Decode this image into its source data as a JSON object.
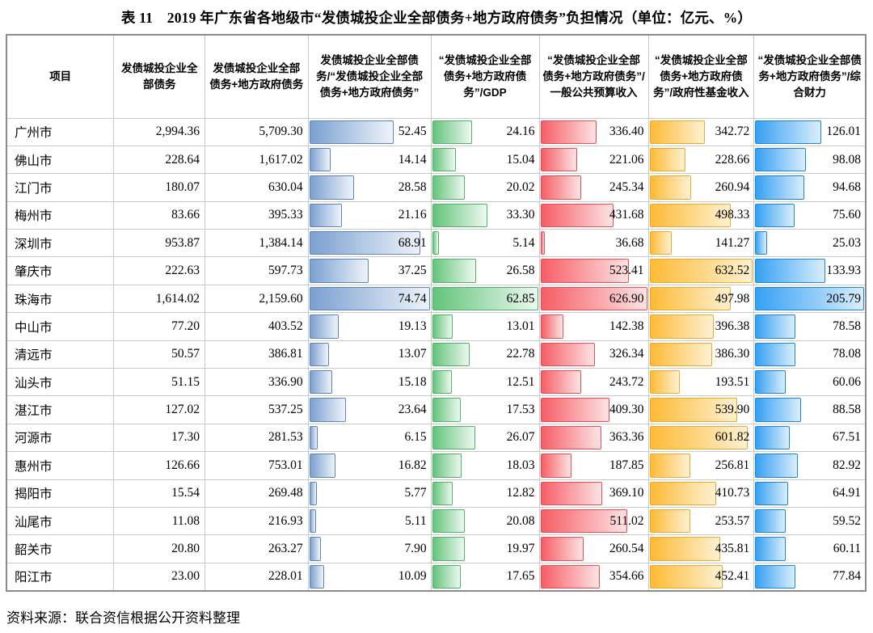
{
  "title": "表 11　2019 年广东省各地级市“发债城投企业全部债务+地方政府债务”负担情况（单位：亿元、%）",
  "source": "资料来源：联合资信根据公开资料整理",
  "bar_styles": {
    "steelblue": {
      "border": "#5b84bd",
      "fill_start": "#7ba0d0",
      "fill_end": "#eef3fa"
    },
    "green": {
      "border": "#50b168",
      "fill_start": "#63c47b",
      "fill_end": "#ecf8ef"
    },
    "red": {
      "border": "#ee4c55",
      "fill_start": "#f65d65",
      "fill_end": "#fce3e4"
    },
    "orange": {
      "border": "#f0a927",
      "fill_start": "#fdba35",
      "fill_end": "#fdf1d2"
    },
    "blue": {
      "border": "#1887dd",
      "fill_start": "#36a0f3",
      "fill_end": "#d9eefc"
    }
  },
  "table": {
    "columns": [
      {
        "label": "项目",
        "type": "text"
      },
      {
        "label": "发债城投企业全部债务",
        "type": "number"
      },
      {
        "label": "发债城投企业全部债务+地方政府债务",
        "type": "number"
      },
      {
        "label": "发债城投企业全部债务/“发债城投企业全部债务+地方政府债务”",
        "type": "bar",
        "style": "steelblue",
        "max": 74.74
      },
      {
        "label": "“发债城投企业全部债务+地方政府债务”/GDP",
        "type": "bar",
        "style": "green",
        "max": 62.85
      },
      {
        "label": "“发债城投企业全部债务+地方政府债务”/一般公共预算收入",
        "type": "bar",
        "style": "red",
        "max": 626.9
      },
      {
        "label": "“发债城投企业全部债务+地方政府债务”/政府性基金收入",
        "type": "bar",
        "style": "orange",
        "max": 632.52
      },
      {
        "label": "“发债城投企业全部债务+地方政府债务”/综合财力",
        "type": "bar",
        "style": "blue",
        "max": 205.79
      }
    ],
    "rows": [
      {
        "cells": [
          "广州市",
          "2,994.36",
          "5,709.30",
          "52.45",
          "24.16",
          "336.40",
          "342.72",
          "126.01"
        ]
      },
      {
        "cells": [
          "佛山市",
          "228.64",
          "1,617.02",
          "14.14",
          "15.04",
          "221.06",
          "228.66",
          "98.08"
        ]
      },
      {
        "cells": [
          "江门市",
          "180.07",
          "630.04",
          "28.58",
          "20.02",
          "245.34",
          "260.94",
          "94.68"
        ]
      },
      {
        "cells": [
          "梅州市",
          "83.66",
          "395.33",
          "21.16",
          "33.30",
          "431.68",
          "498.33",
          "75.60"
        ]
      },
      {
        "cells": [
          "深圳市",
          "953.87",
          "1,384.14",
          "68.91",
          "5.14",
          "36.68",
          "141.27",
          "25.03"
        ]
      },
      {
        "cells": [
          "肇庆市",
          "222.63",
          "597.73",
          "37.25",
          "26.58",
          "523.41",
          "632.52",
          "133.93"
        ]
      },
      {
        "cells": [
          "珠海市",
          "1,614.02",
          "2,159.60",
          "74.74",
          "62.85",
          "626.90",
          "497.98",
          "205.79"
        ]
      },
      {
        "cells": [
          "中山市",
          "77.20",
          "403.52",
          "19.13",
          "13.01",
          "142.38",
          "396.38",
          "78.58"
        ]
      },
      {
        "cells": [
          "清远市",
          "50.57",
          "386.81",
          "13.07",
          "22.78",
          "326.34",
          "386.30",
          "78.08"
        ]
      },
      {
        "cells": [
          "汕头市",
          "51.15",
          "336.90",
          "15.18",
          "12.51",
          "243.72",
          "193.51",
          "60.06"
        ]
      },
      {
        "cells": [
          "湛江市",
          "127.02",
          "537.25",
          "23.64",
          "17.53",
          "409.30",
          "539.90",
          "88.58"
        ]
      },
      {
        "cells": [
          "河源市",
          "17.30",
          "281.53",
          "6.15",
          "26.07",
          "363.36",
          "601.82",
          "67.51"
        ]
      },
      {
        "cells": [
          "惠州市",
          "126.66",
          "753.01",
          "16.82",
          "18.03",
          "187.85",
          "256.81",
          "82.92"
        ]
      },
      {
        "cells": [
          "揭阳市",
          "15.54",
          "269.48",
          "5.77",
          "12.82",
          "369.10",
          "410.73",
          "64.91"
        ]
      },
      {
        "cells": [
          "汕尾市",
          "11.08",
          "216.93",
          "5.11",
          "20.08",
          "511.02",
          "253.57",
          "59.52"
        ]
      },
      {
        "cells": [
          "韶关市",
          "20.80",
          "263.27",
          "7.90",
          "19.97",
          "260.54",
          "435.81",
          "60.11"
        ]
      },
      {
        "cells": [
          "阳江市",
          "23.00",
          "228.01",
          "10.09",
          "17.65",
          "354.66",
          "452.41",
          "77.84"
        ]
      }
    ]
  }
}
